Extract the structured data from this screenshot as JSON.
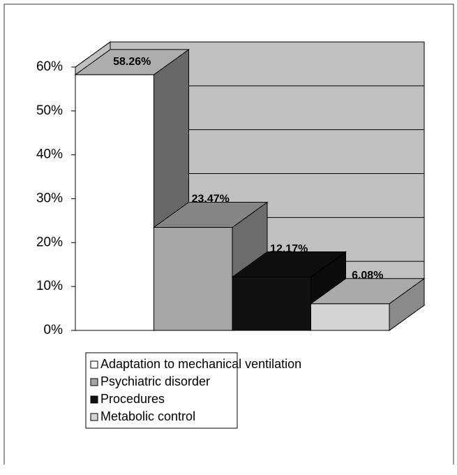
{
  "chart_data": {
    "type": "bar",
    "categories": [
      "Adaptation to mechanical ventilation",
      "Psychiatric disorder",
      "Procedures",
      "Metabolic control"
    ],
    "values": [
      58.26,
      23.47,
      12.17,
      6.08
    ],
    "value_labels": [
      "58.26%",
      "23.47%",
      "12.17%",
      "6.08%"
    ],
    "colors": [
      "#ffffff",
      "#a6a6a6",
      "#111111",
      "#d4d4d4"
    ],
    "ylim": [
      0,
      60
    ],
    "yticks": [
      {
        "value": 0,
        "label": "0%"
      },
      {
        "value": 10,
        "label": "10%"
      },
      {
        "value": 20,
        "label": "20%"
      },
      {
        "value": 30,
        "label": "30%"
      },
      {
        "value": 40,
        "label": "40%"
      },
      {
        "value": 50,
        "label": "50%"
      },
      {
        "value": 60,
        "label": "60%"
      }
    ],
    "grid": true,
    "three_d": true
  }
}
